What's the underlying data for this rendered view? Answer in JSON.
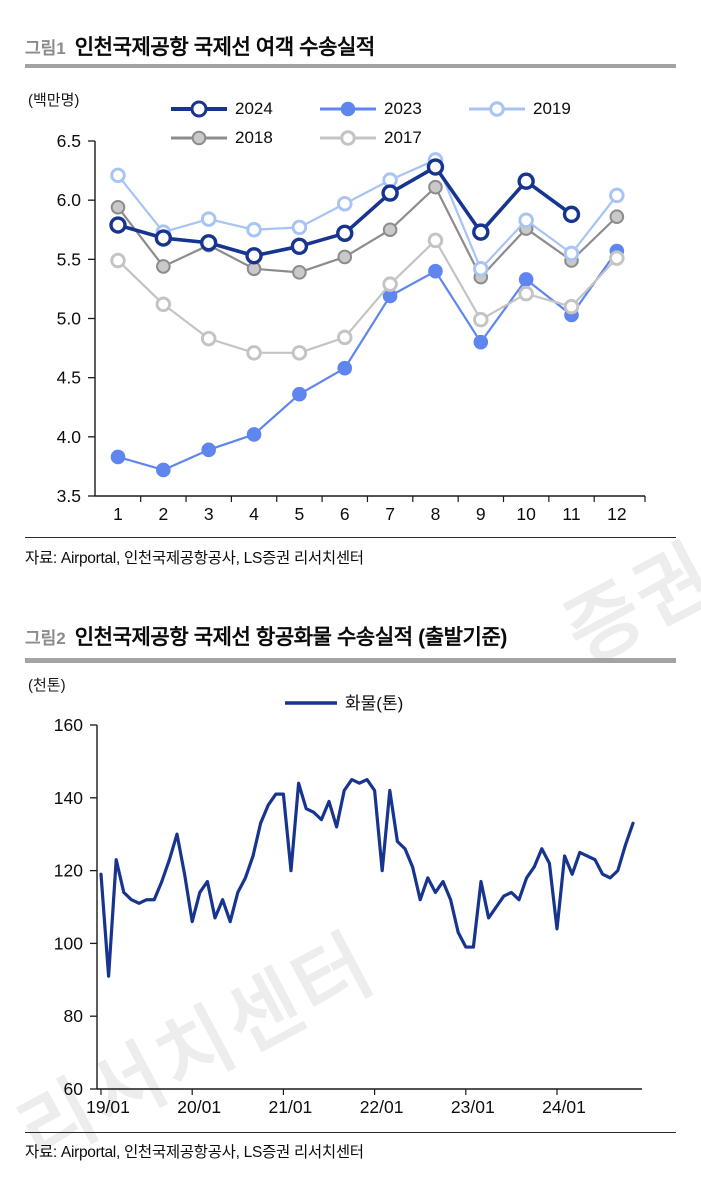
{
  "page": {
    "watermark": {
      "main": "리서치센터",
      "fragment": "증권",
      "color": "#ededed"
    },
    "fig1": {
      "tag": "그림1",
      "title": "인천국제공항 국제선 여객 수송실적",
      "unit": "(백만명)",
      "source": "자료: Airportal, 인천국제공항공사, LS증권 리서치센터"
    },
    "fig2": {
      "tag": "그림2",
      "title": "인천국제공항 국제선 항공화물 수송실적 (출발기준)",
      "unit": "(천톤)",
      "source": "자료: Airportal, 인천국제공항공사, LS증권 리서치센터"
    }
  },
  "chart_data": [
    {
      "type": "line",
      "title": "인천국제공항 국제선 여객 수송실적",
      "ylabel": "(백만명)",
      "x": [
        1,
        2,
        3,
        4,
        5,
        6,
        7,
        8,
        9,
        10,
        11,
        12
      ],
      "ylim": [
        3.5,
        6.5
      ],
      "yticks": [
        3.5,
        4.0,
        4.5,
        5.0,
        5.5,
        6.0,
        6.5
      ],
      "grid": false,
      "legend_position": "top",
      "draw_order": [
        1,
        3,
        4,
        2,
        0
      ],
      "series": [
        {
          "name": "2024",
          "color": "#17348f",
          "emphasis": true,
          "marker": {
            "fill": "#ffffff",
            "stroke": "#17348f"
          },
          "values": [
            5.79,
            5.68,
            5.64,
            5.53,
            5.61,
            5.72,
            6.06,
            6.28,
            5.73,
            6.16,
            5.88
          ]
        },
        {
          "name": "2023",
          "color": "#5f85ef",
          "emphasis": false,
          "marker": {
            "fill": "#5f85ef",
            "stroke": "#5f85ef"
          },
          "values": [
            3.83,
            3.72,
            3.89,
            4.02,
            4.36,
            4.58,
            5.19,
            5.4,
            4.8,
            5.33,
            5.03,
            5.57
          ]
        },
        {
          "name": "2019",
          "color": "#a7c4f5",
          "emphasis": false,
          "marker": {
            "fill": "#ffffff",
            "stroke": "#a7c4f5"
          },
          "values": [
            6.21,
            5.73,
            5.84,
            5.75,
            5.77,
            5.97,
            6.17,
            6.34,
            5.42,
            5.83,
            5.55,
            6.04
          ]
        },
        {
          "name": "2018",
          "color": "#8c8c8c",
          "emphasis": false,
          "marker": {
            "fill": "#c9c9c9",
            "stroke": "#8c8c8c"
          },
          "values": [
            5.94,
            5.44,
            5.62,
            5.42,
            5.39,
            5.52,
            5.75,
            6.11,
            5.35,
            5.76,
            5.49,
            5.86
          ]
        },
        {
          "name": "2017",
          "color": "#c4c4c4",
          "emphasis": false,
          "marker": {
            "fill": "#ffffff",
            "stroke": "#c4c4c4"
          },
          "values": [
            5.49,
            5.12,
            4.83,
            4.71,
            4.71,
            4.84,
            5.29,
            5.66,
            4.99,
            5.21,
            5.1,
            5.51
          ]
        }
      ]
    },
    {
      "type": "line",
      "title": "인천국제공항 국제선 항공화물 수송실적 (출발기준)",
      "ylabel": "(천톤)",
      "x_labels": [
        "19/01",
        "20/01",
        "21/01",
        "22/01",
        "23/01",
        "24/01"
      ],
      "x_label_interval_months": 12,
      "ylim": [
        60,
        160
      ],
      "yticks": [
        60,
        80,
        100,
        120,
        140,
        160
      ],
      "grid": false,
      "legend_position": "top",
      "series": [
        {
          "name": "화물(톤)",
          "color": "#17348f",
          "values": [
            119,
            91,
            123,
            114,
            112,
            111,
            112,
            112,
            117,
            123,
            130,
            119,
            106,
            114,
            117,
            107,
            112,
            106,
            114,
            118,
            124,
            133,
            138,
            141,
            141,
            120,
            144,
            137,
            136,
            134,
            139,
            132,
            142,
            145,
            144,
            145,
            142,
            120,
            142,
            128,
            126,
            121,
            112,
            118,
            114,
            117,
            112,
            103,
            99,
            99,
            117,
            107,
            110,
            113,
            114,
            112,
            118,
            121,
            126,
            122,
            104,
            124,
            119,
            125,
            124,
            123,
            119,
            118,
            120,
            127,
            133
          ]
        }
      ]
    }
  ]
}
